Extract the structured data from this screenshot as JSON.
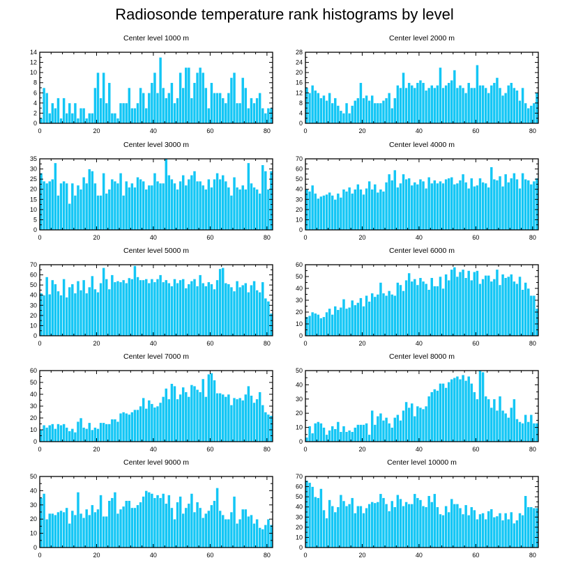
{
  "title": "Radiosonde temperature rank histograms by level",
  "colors": {
    "bar": "#13c6f5",
    "bar_edge": "#ffffff",
    "axis": "#000000"
  },
  "chart_data": [
    {
      "type": "bar",
      "title": "Center level 1000 m",
      "xlabel": "",
      "ylabel": "",
      "xlim": [
        0,
        82
      ],
      "ylim": [
        0,
        14
      ],
      "xticks": [
        0,
        20,
        40,
        60,
        80
      ],
      "yticks": [
        0,
        2,
        4,
        6,
        8,
        10,
        12,
        14
      ],
      "x_start": 0,
      "values": [
        1,
        7,
        6,
        2,
        4,
        3,
        5,
        1,
        5,
        2,
        4,
        2,
        4,
        1,
        3,
        3,
        1,
        2,
        2,
        7,
        10,
        5,
        10,
        4,
        8,
        2,
        2,
        1,
        4,
        4,
        4,
        7,
        3,
        3,
        4,
        7,
        6,
        3,
        6,
        8,
        10,
        6,
        13,
        7,
        5,
        6,
        8,
        4,
        5,
        10,
        7,
        11,
        11,
        5,
        8,
        10,
        11,
        10,
        7,
        3,
        8,
        6,
        6,
        6,
        5,
        4,
        6,
        9,
        10,
        4,
        4,
        9,
        7,
        3,
        5,
        4,
        5,
        6,
        3,
        2,
        3,
        3
      ]
    },
    {
      "type": "bar",
      "title": "Center level 2000 m",
      "xlabel": "",
      "ylabel": "",
      "xlim": [
        0,
        82
      ],
      "ylim": [
        0,
        28
      ],
      "xticks": [
        0,
        20,
        40,
        60,
        80
      ],
      "yticks": [
        0,
        4,
        8,
        12,
        16,
        20,
        24,
        28
      ],
      "x_start": 0,
      "values": [
        14,
        12,
        15,
        13,
        12,
        10,
        11,
        9,
        12,
        8,
        10,
        7,
        5,
        4,
        8,
        4,
        7,
        9,
        10,
        16,
        10,
        11,
        9,
        11,
        8,
        8,
        8,
        9,
        10,
        12,
        6,
        10,
        15,
        14,
        20,
        14,
        16,
        15,
        14,
        16,
        17,
        16,
        13,
        14,
        15,
        14,
        15,
        22,
        14,
        15,
        16,
        17,
        21,
        14,
        15,
        14,
        12,
        16,
        14,
        14,
        23,
        15,
        15,
        14,
        12,
        15,
        16,
        18,
        14,
        11,
        12,
        15,
        16,
        14,
        13,
        9,
        14,
        8,
        6,
        7,
        8,
        12
      ]
    },
    {
      "type": "bar",
      "title": "Center level 3000 m",
      "xlabel": "",
      "ylabel": "",
      "xlim": [
        0,
        82
      ],
      "ylim": [
        0,
        35
      ],
      "xticks": [
        0,
        20,
        40,
        60,
        80
      ],
      "yticks": [
        0,
        5,
        10,
        15,
        20,
        25,
        30,
        35
      ],
      "x_start": 0,
      "values": [
        28,
        24,
        23,
        24,
        25,
        33,
        17,
        23,
        24,
        23,
        13,
        23,
        17,
        22,
        20,
        26,
        23,
        30,
        29,
        23,
        17,
        17,
        28,
        18,
        20,
        25,
        24,
        23,
        28,
        17,
        24,
        21,
        23,
        21,
        26,
        25,
        24,
        20,
        22,
        22,
        28,
        24,
        23,
        23,
        35,
        27,
        25,
        23,
        20,
        24,
        27,
        22,
        25,
        27,
        29,
        24,
        24,
        22,
        20,
        25,
        21,
        25,
        28,
        25,
        27,
        24,
        21,
        17,
        26,
        21,
        20,
        22,
        20,
        33,
        23,
        21,
        20,
        18,
        32,
        29,
        20,
        29
      ]
    },
    {
      "type": "bar",
      "title": "Center level 4000 m",
      "xlabel": "",
      "ylabel": "",
      "xlim": [
        0,
        82
      ],
      "ylim": [
        0,
        70
      ],
      "xticks": [
        0,
        20,
        40,
        60,
        80
      ],
      "yticks": [
        0,
        10,
        20,
        30,
        40,
        50,
        60,
        70
      ],
      "x_start": 0,
      "values": [
        40,
        38,
        44,
        36,
        31,
        33,
        34,
        35,
        37,
        34,
        30,
        36,
        32,
        40,
        38,
        42,
        36,
        40,
        45,
        40,
        35,
        41,
        48,
        40,
        45,
        37,
        40,
        38,
        47,
        55,
        49,
        59,
        42,
        46,
        55,
        50,
        51,
        44,
        47,
        45,
        50,
        48,
        41,
        52,
        46,
        49,
        46,
        48,
        46,
        50,
        51,
        52,
        45,
        46,
        49,
        55,
        47,
        41,
        51,
        43,
        44,
        51,
        47,
        46,
        42,
        62,
        50,
        49,
        53,
        43,
        55,
        47,
        51,
        56,
        50,
        41,
        56,
        50,
        49,
        45,
        48,
        51
      ]
    },
    {
      "type": "bar",
      "title": "Center level 5000 m",
      "xlabel": "",
      "ylabel": "",
      "xlim": [
        0,
        82
      ],
      "ylim": [
        0,
        70
      ],
      "xticks": [
        0,
        20,
        40,
        60,
        80
      ],
      "yticks": [
        0,
        10,
        20,
        30,
        40,
        50,
        60,
        70
      ],
      "x_start": 0,
      "values": [
        42,
        40,
        58,
        41,
        55,
        51,
        44,
        40,
        56,
        38,
        48,
        51,
        42,
        54,
        45,
        55,
        42,
        48,
        59,
        46,
        43,
        52,
        67,
        56,
        46,
        60,
        53,
        54,
        53,
        55,
        52,
        57,
        56,
        69,
        58,
        55,
        55,
        56,
        52,
        56,
        53,
        56,
        60,
        53,
        55,
        52,
        49,
        56,
        52,
        55,
        56,
        47,
        51,
        54,
        56,
        49,
        60,
        52,
        49,
        53,
        51,
        46,
        55,
        66,
        67,
        52,
        51,
        48,
        44,
        54,
        48,
        50,
        52,
        43,
        50,
        54,
        45,
        43,
        53,
        37,
        34,
        22
      ]
    },
    {
      "type": "bar",
      "title": "Center level 6000 m",
      "xlabel": "",
      "ylabel": "",
      "xlim": [
        0,
        82
      ],
      "ylim": [
        0,
        60
      ],
      "xticks": [
        0,
        20,
        40,
        60,
        80
      ],
      "yticks": [
        0,
        10,
        20,
        30,
        40,
        50,
        60
      ],
      "x_start": 0,
      "values": [
        16,
        17,
        20,
        19,
        18,
        15,
        16,
        20,
        23,
        18,
        25,
        22,
        24,
        31,
        23,
        24,
        30,
        26,
        28,
        32,
        25,
        34,
        29,
        36,
        33,
        35,
        45,
        36,
        34,
        38,
        35,
        34,
        45,
        43,
        38,
        47,
        53,
        46,
        48,
        43,
        49,
        46,
        44,
        39,
        49,
        42,
        42,
        50,
        40,
        52,
        47,
        56,
        58,
        50,
        54,
        56,
        49,
        55,
        47,
        54,
        55,
        44,
        48,
        51,
        51,
        46,
        48,
        56,
        43,
        52,
        49,
        50,
        52,
        46,
        44,
        50,
        39,
        45,
        40,
        34,
        34,
        23
      ]
    },
    {
      "type": "bar",
      "title": "Center level 7000 m",
      "xlabel": "",
      "ylabel": "",
      "xlim": [
        0,
        82
      ],
      "ylim": [
        0,
        60
      ],
      "xticks": [
        0,
        20,
        40,
        60,
        80
      ],
      "yticks": [
        0,
        10,
        20,
        30,
        40,
        50,
        60
      ],
      "x_start": 0,
      "values": [
        10,
        14,
        12,
        14,
        15,
        11,
        15,
        14,
        15,
        12,
        9,
        11,
        8,
        17,
        20,
        12,
        11,
        16,
        10,
        12,
        11,
        16,
        16,
        15,
        15,
        19,
        19,
        17,
        24,
        25,
        24,
        23,
        25,
        27,
        27,
        30,
        37,
        28,
        35,
        32,
        29,
        30,
        33,
        38,
        45,
        36,
        49,
        47,
        36,
        40,
        46,
        42,
        38,
        48,
        47,
        44,
        42,
        53,
        38,
        57,
        58,
        52,
        41,
        41,
        40,
        38,
        40,
        31,
        37,
        36,
        37,
        35,
        40,
        47,
        39,
        33,
        36,
        42,
        31,
        25,
        23,
        22
      ]
    },
    {
      "type": "bar",
      "title": "Center level 8000 m",
      "xlabel": "",
      "ylabel": "",
      "xlim": [
        0,
        82
      ],
      "ylim": [
        0,
        50
      ],
      "xticks": [
        0,
        20,
        40,
        60,
        80
      ],
      "yticks": [
        0,
        10,
        20,
        30,
        40,
        50
      ],
      "x_start": 0,
      "values": [
        3,
        11,
        6,
        13,
        14,
        13,
        10,
        5,
        8,
        11,
        9,
        14,
        7,
        11,
        7,
        8,
        7,
        10,
        12,
        12,
        12,
        13,
        5,
        22,
        12,
        18,
        20,
        15,
        17,
        13,
        10,
        17,
        19,
        15,
        22,
        28,
        24,
        27,
        18,
        25,
        24,
        23,
        25,
        32,
        35,
        37,
        36,
        41,
        41,
        38,
        42,
        44,
        45,
        46,
        44,
        47,
        43,
        46,
        41,
        35,
        30,
        50,
        49,
        32,
        30,
        24,
        30,
        22,
        32,
        22,
        20,
        17,
        24,
        30,
        16,
        14,
        13,
        19,
        14,
        19,
        13,
        13
      ]
    },
    {
      "type": "bar",
      "title": "Center level 9000 m",
      "xlabel": "",
      "ylabel": "",
      "xlim": [
        0,
        82
      ],
      "ylim": [
        0,
        50
      ],
      "xticks": [
        0,
        20,
        40,
        60,
        80
      ],
      "yticks": [
        0,
        10,
        20,
        30,
        40,
        50
      ],
      "x_start": 0,
      "values": [
        35,
        38,
        20,
        24,
        24,
        23,
        25,
        26,
        25,
        28,
        17,
        26,
        23,
        39,
        24,
        21,
        27,
        23,
        30,
        25,
        27,
        37,
        22,
        22,
        33,
        35,
        39,
        24,
        27,
        29,
        33,
        33,
        28,
        28,
        30,
        32,
        36,
        40,
        39,
        38,
        35,
        37,
        35,
        38,
        31,
        37,
        28,
        20,
        32,
        36,
        24,
        28,
        31,
        38,
        25,
        32,
        28,
        21,
        24,
        26,
        30,
        33,
        42,
        26,
        23,
        20,
        20,
        25,
        36,
        17,
        20,
        27,
        27,
        22,
        23,
        17,
        20,
        14,
        13,
        16,
        20,
        16
      ]
    },
    {
      "type": "bar",
      "title": "Center level 10000 m",
      "xlabel": "",
      "ylabel": "",
      "xlim": [
        0,
        82
      ],
      "ylim": [
        0,
        70
      ],
      "xticks": [
        0,
        20,
        40,
        60,
        80
      ],
      "yticks": [
        0,
        10,
        20,
        30,
        40,
        50,
        60,
        70
      ],
      "x_start": 0,
      "values": [
        66,
        64,
        60,
        50,
        49,
        58,
        37,
        29,
        47,
        41,
        35,
        40,
        52,
        46,
        41,
        43,
        49,
        34,
        41,
        41,
        34,
        39,
        43,
        45,
        44,
        45,
        53,
        49,
        43,
        36,
        46,
        40,
        52,
        48,
        41,
        45,
        43,
        43,
        53,
        49,
        47,
        41,
        40,
        51,
        45,
        53,
        40,
        33,
        32,
        41,
        35,
        48,
        43,
        43,
        39,
        33,
        42,
        32,
        40,
        37,
        28,
        33,
        34,
        28,
        36,
        38,
        30,
        31,
        34,
        27,
        34,
        28,
        35,
        24,
        27,
        34,
        32,
        51,
        40,
        40,
        39,
        39
      ]
    }
  ]
}
